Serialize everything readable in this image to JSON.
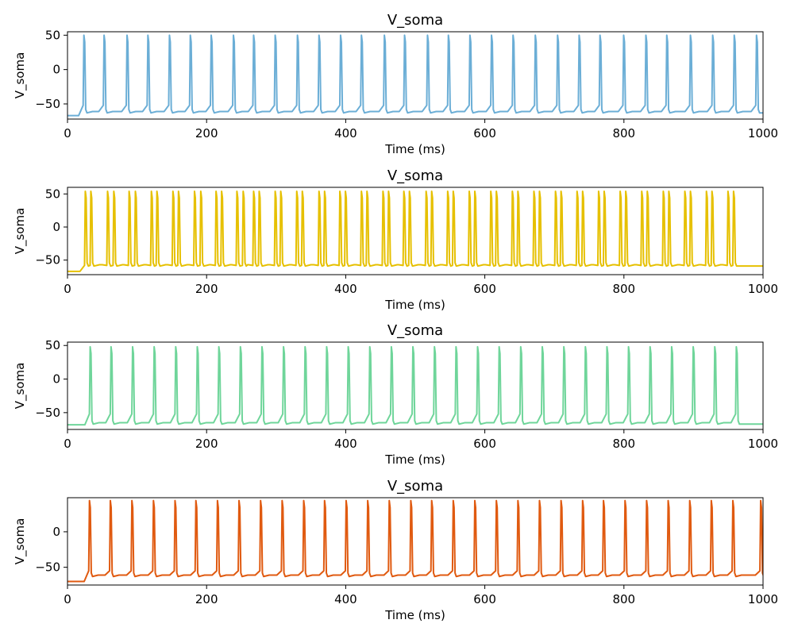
{
  "chart_data": [
    {
      "type": "line",
      "title": "V_soma",
      "xlabel": "Time (ms)",
      "ylabel": "V_soma",
      "xlim": [
        0,
        1000
      ],
      "ylim": [
        -72,
        55
      ],
      "xticks": [
        0,
        200,
        400,
        600,
        800,
        1000
      ],
      "yticks": [
        -50,
        0,
        50
      ],
      "grid": false,
      "series": [
        {
          "color": "#6baed6",
          "rest": -67,
          "trough": -63,
          "peak": 50,
          "pre_spike": -52,
          "spike_times": [
            24,
            53,
            86,
            116,
            147,
            177,
            207,
            239,
            268,
            299,
            331,
            362,
            393,
            423,
            456,
            485,
            518,
            548,
            579,
            610,
            641,
            673,
            705,
            736,
            766,
            800,
            832,
            862,
            896,
            928,
            959,
            991
          ]
        }
      ]
    },
    {
      "type": "line",
      "title": "V_soma",
      "xlabel": "Time (ms)",
      "ylabel": "V_soma",
      "xlim": [
        0,
        1000
      ],
      "ylim": [
        -72,
        60
      ],
      "xticks": [
        0,
        200,
        400,
        600,
        800,
        1000
      ],
      "yticks": [
        -50,
        0,
        50
      ],
      "grid": false,
      "series": [
        {
          "color": "#e6c000",
          "rest": -67,
          "trough": -59,
          "peak": 54,
          "pre_spike": -58,
          "spike_times": [
            26,
            34,
            58,
            67,
            89,
            98,
            121,
            129,
            152,
            160,
            183,
            192,
            214,
            222,
            244,
            253,
            268,
            276,
            299,
            307,
            330,
            338,
            362,
            370,
            392,
            400,
            423,
            431,
            454,
            462,
            484,
            492,
            516,
            524,
            547,
            555,
            578,
            586,
            609,
            617,
            640,
            648,
            671,
            679,
            702,
            710,
            733,
            741,
            764,
            772,
            795,
            803,
            826,
            834,
            857,
            865,
            888,
            896,
            919,
            927,
            950,
            958
          ]
        }
      ]
    },
    {
      "type": "line",
      "title": "V_soma",
      "xlabel": "Time (ms)",
      "ylabel": "V_soma",
      "xlim": [
        0,
        1000
      ],
      "ylim": [
        -75,
        55
      ],
      "xticks": [
        0,
        200,
        400,
        600,
        800,
        1000
      ],
      "yticks": [
        -50,
        0,
        50
      ],
      "grid": false,
      "series": [
        {
          "color": "#6fd59a",
          "rest": -68,
          "trough": -67,
          "peak": 48,
          "pre_spike": -52,
          "spike_times": [
            33,
            63,
            94,
            125,
            156,
            187,
            218,
            249,
            280,
            311,
            342,
            373,
            404,
            435,
            466,
            497,
            528,
            559,
            590,
            621,
            652,
            683,
            714,
            745,
            776,
            807,
            838,
            869,
            900,
            931,
            962
          ]
        }
      ]
    },
    {
      "type": "line",
      "title": "V_soma",
      "xlabel": "Time (ms)",
      "ylabel": "V_soma",
      "xlim": [
        0,
        1000
      ],
      "ylim": [
        -75,
        48
      ],
      "xticks": [
        0,
        200,
        400,
        600,
        800,
        1000
      ],
      "yticks": [
        -50,
        0
      ],
      "grid": false,
      "series": [
        {
          "color": "#e05a10",
          "rest": -70,
          "trough": -63,
          "peak": 44,
          "pre_spike": -55,
          "spike_times": [
            32,
            62,
            93,
            124,
            155,
            185,
            216,
            247,
            278,
            309,
            340,
            370,
            401,
            432,
            463,
            494,
            524,
            555,
            586,
            617,
            648,
            679,
            710,
            741,
            771,
            802,
            833,
            864,
            895,
            926,
            957,
            997
          ]
        }
      ]
    }
  ]
}
